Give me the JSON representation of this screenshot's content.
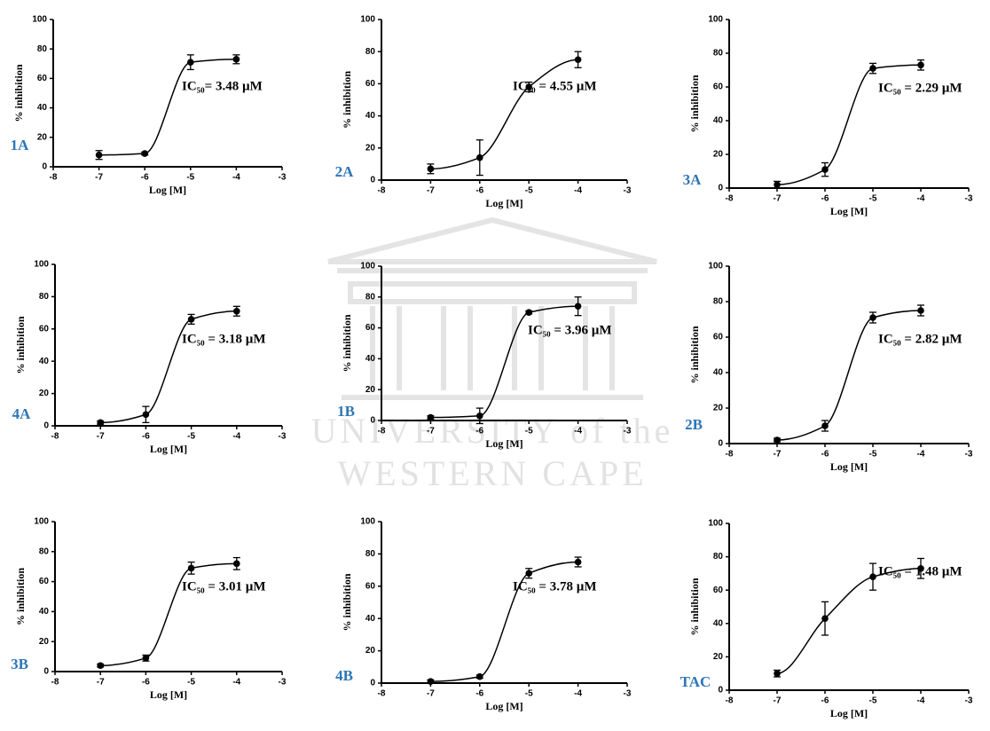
{
  "watermark": {
    "line1": "UNIVERSITY of the",
    "line2": "WESTERN CAPE"
  },
  "chart_data": [
    {
      "type": "scatter",
      "panel_label": "1A",
      "annotation": "IC₅₀= 3.48 µM",
      "x_label": "Log [M]",
      "y_label": "% inhibition",
      "x": [
        -7,
        -6,
        -5,
        -4
      ],
      "values": [
        8,
        9,
        71,
        73
      ],
      "errors": [
        3,
        1,
        5,
        3
      ],
      "color": "#000000",
      "xlim": [
        -8,
        -3
      ],
      "xticks": [
        -8,
        -7,
        -6,
        -5,
        -4,
        -3
      ],
      "ylim": [
        0,
        100
      ],
      "yticks": [
        0,
        20,
        40,
        60,
        80,
        100
      ]
    },
    {
      "type": "scatter",
      "panel_label": "2A",
      "annotation": "IC₅₀ = 4.55 µM",
      "x_label": "Log [M]",
      "y_label": "% inhibition",
      "x": [
        -7,
        -6,
        -5,
        -4
      ],
      "values": [
        7,
        14,
        58,
        75
      ],
      "errors": [
        3,
        11,
        3,
        5
      ],
      "color": "#000000",
      "xlim": [
        -8,
        -3
      ],
      "xticks": [
        -8,
        -7,
        -6,
        -5,
        -4,
        -3
      ],
      "ylim": [
        0,
        100
      ],
      "yticks": [
        0,
        20,
        40,
        60,
        80,
        100
      ]
    },
    {
      "type": "scatter",
      "panel_label": "3A",
      "annotation": "IC₅₀ = 2.29 µM",
      "x_label": "Log [M]",
      "y_label": "% inhibition",
      "x": [
        -7,
        -6,
        -5,
        -4
      ],
      "values": [
        2,
        11,
        71,
        73
      ],
      "errors": [
        2,
        4,
        3,
        3
      ],
      "color": "#000000",
      "xlim": [
        -8,
        -3
      ],
      "xticks": [
        -8,
        -7,
        -6,
        -5,
        -4,
        -3
      ],
      "ylim": [
        0,
        100
      ],
      "yticks": [
        0,
        20,
        40,
        60,
        80,
        100
      ]
    },
    {
      "type": "scatter",
      "panel_label": "4A",
      "annotation": "IC₅₀ = 3.18 µM",
      "x_label": "Log [M]",
      "y_label": "% inhibition",
      "x": [
        -7,
        -6,
        -5,
        -4
      ],
      "values": [
        2,
        7,
        66,
        71
      ],
      "errors": [
        1,
        5,
        3,
        3
      ],
      "color": "#000000",
      "xlim": [
        -8,
        -3
      ],
      "xticks": [
        -8,
        -7,
        -6,
        -5,
        -4,
        -3
      ],
      "ylim": [
        0,
        100
      ],
      "yticks": [
        0,
        20,
        40,
        60,
        80,
        100
      ]
    },
    {
      "type": "scatter",
      "panel_label": "1B",
      "annotation": "IC₅₀ = 3.96 µM",
      "x_label": "Log [M]",
      "y_label": "% inhibition",
      "x": [
        -7,
        -6,
        -5,
        -4
      ],
      "values": [
        2,
        3,
        70,
        74
      ],
      "errors": [
        1,
        5,
        1,
        6
      ],
      "color": "#000000",
      "xlim": [
        -8,
        -3
      ],
      "xticks": [
        -8,
        -7,
        -6,
        -5,
        -4,
        -3
      ],
      "ylim": [
        0,
        100
      ],
      "yticks": [
        0,
        20,
        40,
        60,
        80,
        100
      ]
    },
    {
      "type": "scatter",
      "panel_label": "2B",
      "annotation": "IC₅₀ = 2.82 µM",
      "x_label": "Log [M]",
      "y_label": "% inhibition",
      "x": [
        -7,
        -6,
        -5,
        -4
      ],
      "values": [
        2,
        10,
        71,
        75
      ],
      "errors": [
        1,
        3,
        3,
        3
      ],
      "color": "#000000",
      "xlim": [
        -8,
        -3
      ],
      "xticks": [
        -8,
        -7,
        -6,
        -5,
        -4,
        -3
      ],
      "ylim": [
        0,
        100
      ],
      "yticks": [
        0,
        20,
        40,
        60,
        80,
        100
      ]
    },
    {
      "type": "scatter",
      "panel_label": "3B",
      "annotation": "IC₅₀ = 3.01 µM",
      "x_label": "Log [M]",
      "y_label": "% inhibition",
      "x": [
        -7,
        -6,
        -5,
        -4
      ],
      "values": [
        4,
        9,
        69,
        72
      ],
      "errors": [
        1,
        2,
        4,
        4
      ],
      "color": "#000000",
      "xlim": [
        -8,
        -3
      ],
      "xticks": [
        -8,
        -7,
        -6,
        -5,
        -4,
        -3
      ],
      "ylim": [
        0,
        100
      ],
      "yticks": [
        0,
        20,
        40,
        60,
        80,
        100
      ]
    },
    {
      "type": "scatter",
      "panel_label": "4B",
      "annotation": "IC₅₀ = 3.78 µM",
      "x_label": "Log [M]",
      "y_label": "% inhibition",
      "x": [
        -7,
        -6,
        -5,
        -4
      ],
      "values": [
        1,
        4,
        68,
        75
      ],
      "errors": [
        1,
        1,
        3,
        3
      ],
      "color": "#000000",
      "xlim": [
        -8,
        -3
      ],
      "xticks": [
        -8,
        -7,
        -6,
        -5,
        -4,
        -3
      ],
      "ylim": [
        0,
        100
      ],
      "yticks": [
        0,
        20,
        40,
        60,
        80,
        100
      ]
    },
    {
      "type": "scatter",
      "panel_label": "TAC",
      "annotation": "IC₅₀ = 1.48 µM",
      "x_label": "Log [M]",
      "y_label": "% inhibition",
      "x": [
        -7,
        -6,
        -5,
        -4
      ],
      "values": [
        10,
        43,
        68,
        73
      ],
      "errors": [
        2,
        10,
        8,
        6
      ],
      "color": "#000000",
      "xlim": [
        -8,
        -3
      ],
      "xticks": [
        -8,
        -7,
        -6,
        -5,
        -4,
        -3
      ],
      "ylim": [
        0,
        100
      ],
      "yticks": [
        0,
        20,
        40,
        60,
        80,
        100
      ]
    }
  ]
}
